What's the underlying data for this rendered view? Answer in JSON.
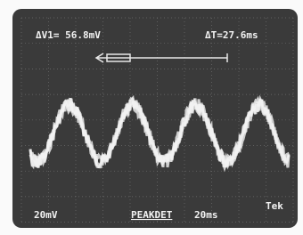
{
  "readouts": {
    "delta_v": "ΔV1= 56.8mV",
    "delta_t": "ΔT=27.6ms"
  },
  "footer": {
    "volts_per_div": "20mV",
    "mode": "PEAKDET",
    "time_per_div": "20ms",
    "brand": "Tek"
  }
}
